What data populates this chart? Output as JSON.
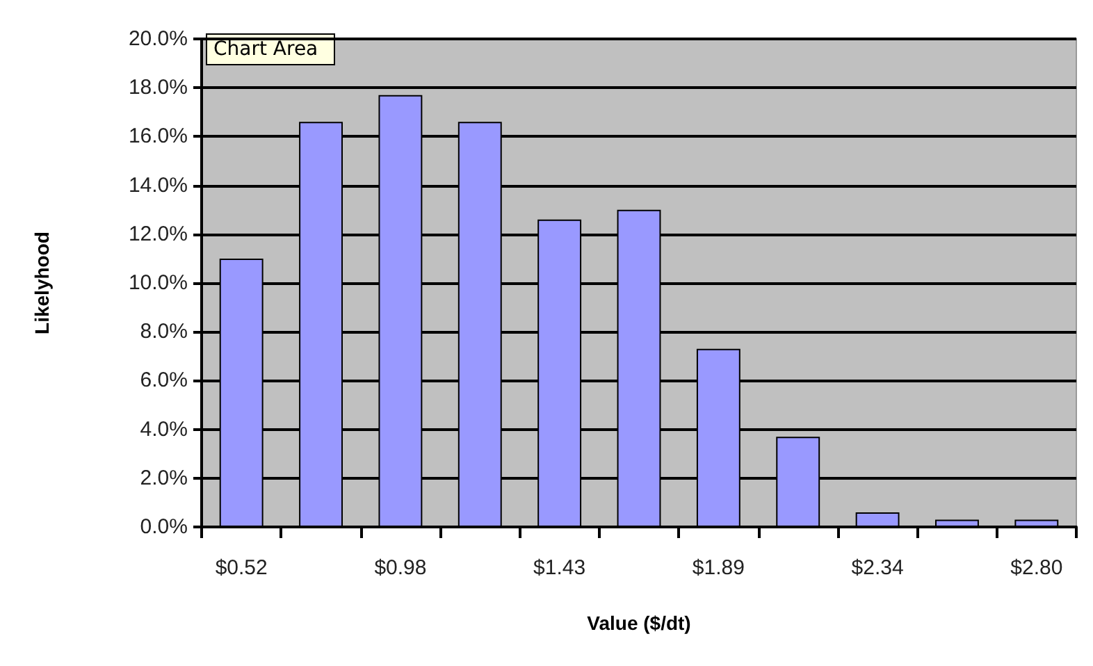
{
  "chart_data": {
    "type": "bar",
    "xlabel": "Value ($/dt)",
    "ylabel": "Likelyhood",
    "annotations": [
      "Chart Area"
    ],
    "categories": [
      "$0.52",
      null,
      "$0.98",
      null,
      "$1.43",
      null,
      "$1.89",
      null,
      "$2.34",
      null,
      "$2.80"
    ],
    "values": [
      11.0,
      16.6,
      17.7,
      16.6,
      12.6,
      13.0,
      7.3,
      3.7,
      0.6,
      0.3,
      0.3
    ],
    "color": "#9999ff",
    "ylim": [
      0,
      20
    ],
    "yticks": [
      {
        "value": 0,
        "label": "0.0%"
      },
      {
        "value": 2,
        "label": "2.0%"
      },
      {
        "value": 4,
        "label": "4.0%"
      },
      {
        "value": 6,
        "label": "6.0%"
      },
      {
        "value": 8,
        "label": "8.0%"
      },
      {
        "value": 10,
        "label": "10.0%"
      },
      {
        "value": 12,
        "label": "12.0%"
      },
      {
        "value": 14,
        "label": "14.0%"
      },
      {
        "value": 16,
        "label": "16.0%"
      },
      {
        "value": 18,
        "label": "18.0%"
      },
      {
        "value": 20,
        "label": "20.0%"
      }
    ],
    "grid": "y"
  }
}
